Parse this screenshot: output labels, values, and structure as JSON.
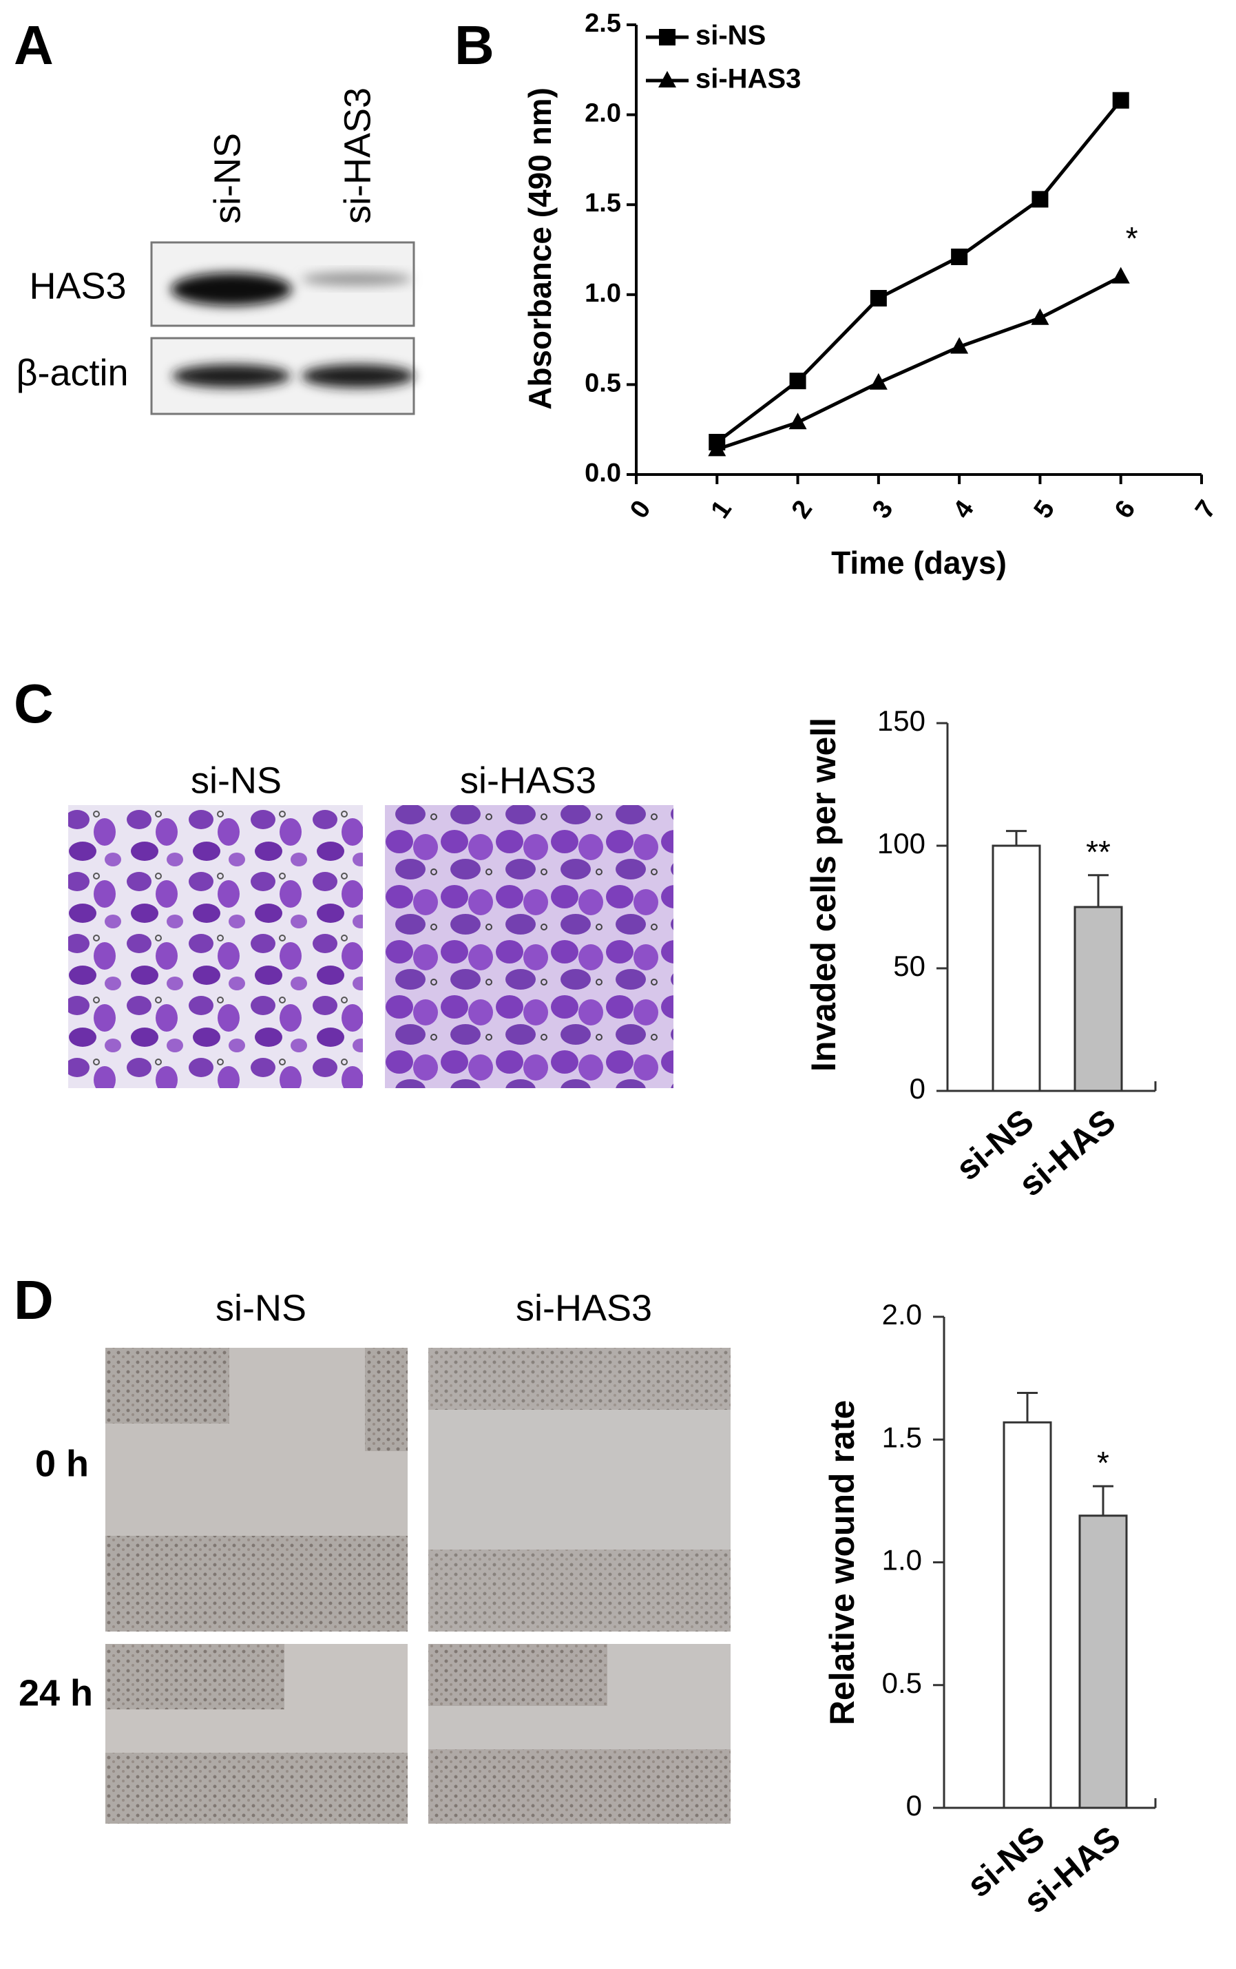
{
  "figure": {
    "panel_labels": [
      "A",
      "B",
      "C",
      "D"
    ],
    "blot": {
      "lanes": [
        "si-NS",
        "si-HAS3"
      ],
      "rows": [
        "HAS3",
        "β-actin"
      ]
    },
    "invasion_images": {
      "labels": [
        "si-NS",
        "si-HAS3"
      ]
    },
    "wound_images": {
      "labels": [
        "si-NS",
        "si-HAS3"
      ],
      "times": [
        "0 h",
        "24 h"
      ]
    }
  },
  "chart_data": [
    {
      "type": "line",
      "x_label": "Time (days)",
      "y_label": "Absorbance (490 nm)",
      "x": [
        1,
        2,
        3,
        4,
        5,
        6
      ],
      "series": [
        {
          "name": "si-NS",
          "color": "#000000",
          "marker": "square",
          "values": [
            0.18,
            0.52,
            0.98,
            1.21,
            1.53,
            2.08
          ]
        },
        {
          "name": "si-HAS3",
          "color": "#000000",
          "marker": "triangle",
          "values": [
            0.14,
            0.29,
            0.51,
            0.71,
            0.87,
            1.1
          ]
        }
      ],
      "annotation": "*",
      "xlim": [
        0,
        7
      ],
      "xticks": [
        0,
        1,
        2,
        3,
        4,
        5,
        6,
        7
      ],
      "ylim": [
        0,
        2.5
      ],
      "yticks": [
        {
          "value": 0,
          "label": "0.0"
        },
        0.5,
        {
          "value": 1,
          "label": "1.0"
        },
        1.5,
        {
          "value": 2,
          "label": "2.0"
        },
        2.5
      ]
    },
    {
      "type": "bar",
      "y_label": "Invaded cells per well",
      "categories": [
        "si-NS",
        "si-HAS"
      ],
      "values": [
        100,
        75
      ],
      "errors": [
        6,
        13
      ],
      "colors": [
        "#ffffff",
        "#bfbfbf"
      ],
      "annotation": "**",
      "ylim": [
        0,
        150
      ],
      "yticks": [
        0,
        50,
        100,
        150
      ]
    },
    {
      "type": "bar",
      "y_label": "Relative wound rate",
      "categories": [
        "si-NS",
        "si-HAS"
      ],
      "values": [
        1.57,
        1.19
      ],
      "errors": [
        0.12,
        0.12
      ],
      "colors": [
        "#ffffff",
        "#bfbfbf"
      ],
      "annotation": "*",
      "ylim": [
        0,
        2
      ],
      "yticks": [
        0,
        0.5,
        {
          "value": 1,
          "label": "1.0"
        },
        1.5,
        {
          "value": 2,
          "label": "2.0"
        }
      ]
    }
  ]
}
